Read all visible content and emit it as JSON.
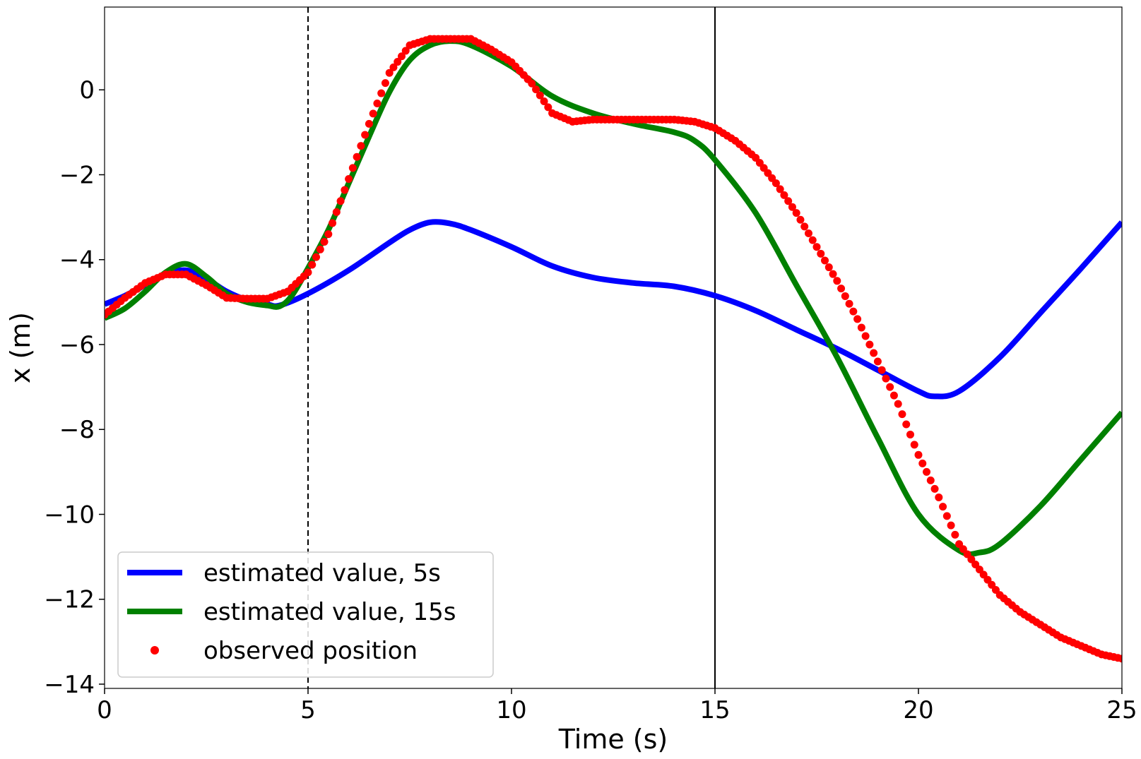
{
  "chart_data": {
    "type": "line",
    "title": "",
    "xlabel": "Time (s)",
    "ylabel": "x (m)",
    "xlim": [
      0,
      25
    ],
    "ylim": [
      -14.1,
      1.95
    ],
    "xticks": [
      0,
      5,
      10,
      15,
      20,
      25
    ],
    "yticks": [
      0,
      -2,
      -4,
      -6,
      -8,
      -10,
      -12,
      -14
    ],
    "ytick_labels": [
      "0",
      "−2",
      "−4",
      "−6",
      "−8",
      "−10",
      "−12",
      "−14"
    ],
    "grid": false,
    "legend_position": "lower-left",
    "vlines": [
      {
        "x": 5,
        "style": "dashed",
        "color": "#000000"
      },
      {
        "x": 15,
        "style": "solid",
        "color": "#000000"
      }
    ],
    "series": [
      {
        "name": "estimated value, 5s",
        "kind": "line",
        "color": "#0000ff",
        "x": [
          0,
          0.5,
          1,
          1.5,
          2,
          2.5,
          3,
          3.5,
          4,
          4.3,
          5,
          6,
          7,
          7.5,
          8,
          8.5,
          9,
          10,
          11,
          12,
          13,
          14,
          15,
          16,
          17,
          18,
          19,
          20,
          20.4,
          21,
          22,
          23,
          24,
          25
        ],
        "y": [
          -5.05,
          -4.85,
          -4.6,
          -4.35,
          -4.25,
          -4.45,
          -4.75,
          -4.95,
          -5.05,
          -5.08,
          -4.8,
          -4.25,
          -3.6,
          -3.3,
          -3.12,
          -3.15,
          -3.3,
          -3.7,
          -4.15,
          -4.42,
          -4.55,
          -4.63,
          -4.85,
          -5.2,
          -5.65,
          -6.1,
          -6.6,
          -7.1,
          -7.22,
          -7.1,
          -6.3,
          -5.25,
          -4.2,
          -3.12
        ]
      },
      {
        "name": "estimated value, 15s",
        "kind": "line",
        "color": "#008000",
        "x": [
          0,
          0.5,
          1,
          1.5,
          2,
          2.5,
          3,
          3.5,
          4,
          4.3,
          4.6,
          5,
          5.5,
          6,
          6.5,
          7,
          7.5,
          8,
          8.5,
          9,
          10,
          11,
          12,
          13,
          14,
          14.5,
          15,
          16,
          17,
          18,
          19,
          20,
          21,
          21.5,
          22,
          23,
          24,
          25
        ],
        "y": [
          -5.38,
          -5.15,
          -4.75,
          -4.3,
          -4.1,
          -4.4,
          -4.8,
          -5.0,
          -5.08,
          -5.1,
          -4.85,
          -4.2,
          -3.3,
          -2.2,
          -1.1,
          -0.05,
          0.7,
          1.05,
          1.15,
          1.05,
          0.55,
          -0.15,
          -0.55,
          -0.8,
          -1.0,
          -1.2,
          -1.65,
          -2.9,
          -4.6,
          -6.3,
          -8.2,
          -10.0,
          -10.85,
          -10.9,
          -10.7,
          -9.8,
          -8.7,
          -7.6
        ]
      },
      {
        "name": "observed position",
        "kind": "scatter",
        "color": "#ff0000",
        "x": [
          0,
          0.5,
          1,
          1.5,
          2,
          2.5,
          3,
          3.5,
          4,
          4.5,
          5,
          5.5,
          6,
          6.5,
          7,
          7.5,
          8,
          8.5,
          9,
          9.5,
          10,
          10.5,
          11,
          11.5,
          12,
          12.5,
          13,
          13.5,
          14,
          14.5,
          15,
          15.5,
          16,
          16.5,
          17,
          17.5,
          18,
          18.5,
          19,
          19.5,
          20,
          20.5,
          21,
          21.5,
          22,
          22.5,
          23,
          23.5,
          24,
          24.5,
          25
        ],
        "y": [
          -5.3,
          -4.9,
          -4.55,
          -4.35,
          -4.35,
          -4.6,
          -4.9,
          -4.92,
          -4.92,
          -4.75,
          -4.3,
          -3.4,
          -2.1,
          -0.8,
          0.4,
          1.05,
          1.2,
          1.2,
          1.2,
          0.95,
          0.65,
          0.15,
          -0.55,
          -0.75,
          -0.7,
          -0.7,
          -0.7,
          -0.7,
          -0.7,
          -0.75,
          -0.9,
          -1.2,
          -1.6,
          -2.2,
          -2.9,
          -3.7,
          -4.5,
          -5.4,
          -6.4,
          -7.4,
          -8.6,
          -9.6,
          -10.7,
          -11.3,
          -11.9,
          -12.3,
          -12.6,
          -12.9,
          -13.1,
          -13.3,
          -13.4
        ]
      }
    ]
  }
}
